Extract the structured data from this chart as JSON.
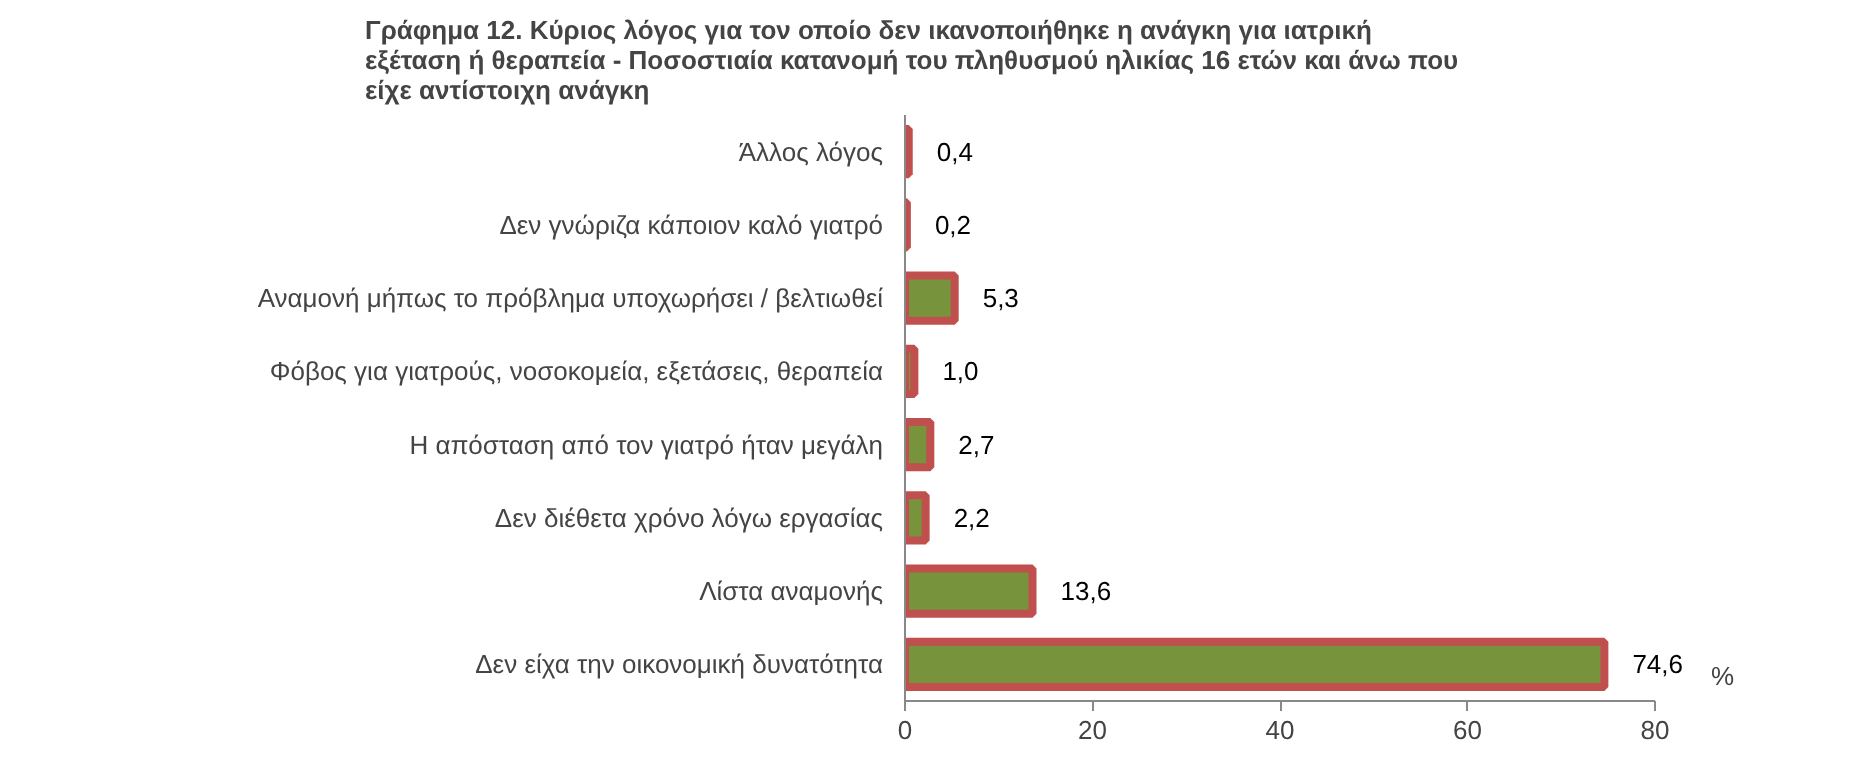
{
  "chart_data": {
    "type": "bar",
    "orientation": "horizontal",
    "title": "Γράφημα 12. Κύριος λόγος για τον οποίο δεν ικανοποιήθηκε η ανάγκη για ιατρική\nεξέταση ή θεραπεία - Ποσοστιαία κατανομή του πληθυσμού ηλικίας 16 ετών και άνω που\nείχε αντίστοιχη ανάγκη",
    "categories": [
      "Άλλος λόγος",
      "Δεν γνώριζα κάποιον καλό γιατρό",
      "Αναμονή μήπως το πρόβλημα υποχωρήσει / βελτιωθεί",
      "Φόβος για γιατρούς, νοσοκομεία, εξετάσεις, θεραπεία",
      "Η απόσταση από τον γιατρό ήταν μεγάλη",
      "Δεν διέθετα χρόνο λόγω εργασίας",
      "Λίστα αναμονής",
      "Δεν είχα την οικονομική δυνατότητα"
    ],
    "values": [
      0.4,
      0.2,
      5.3,
      1.0,
      2.7,
      2.2,
      13.6,
      74.6
    ],
    "value_labels": [
      "0,4",
      "0,2",
      "5,3",
      "1,0",
      "2,7",
      "2,2",
      "13,6",
      "74,6"
    ],
    "color": "#77933c",
    "xlabel": "%",
    "xlim": [
      0,
      80
    ],
    "xticks": [
      0,
      20,
      40,
      60,
      80
    ],
    "grid": false
  }
}
